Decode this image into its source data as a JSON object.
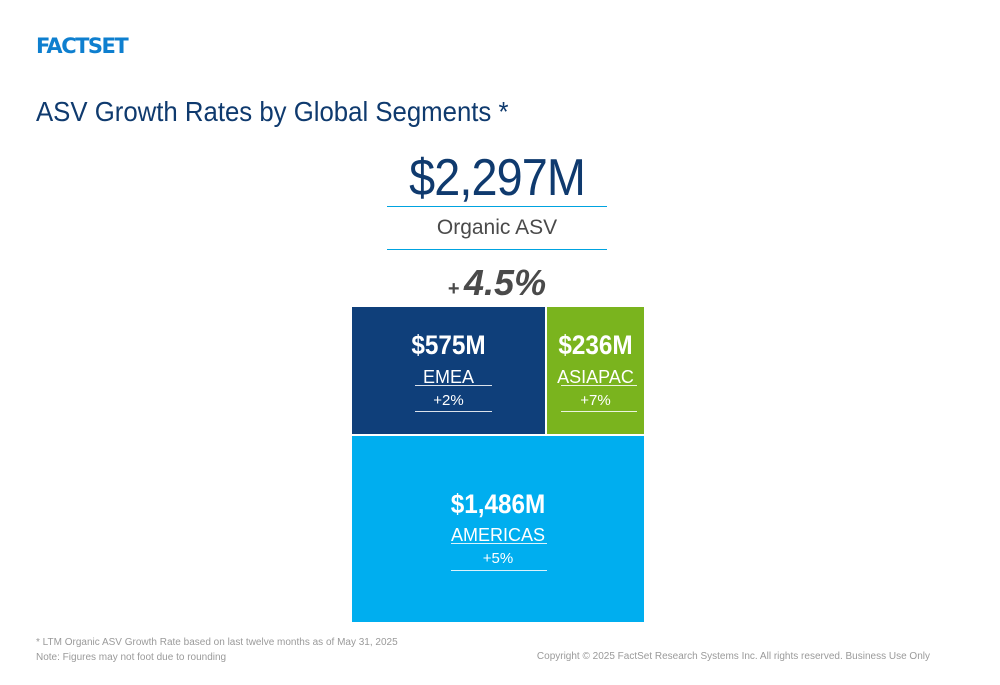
{
  "logo": {
    "text": "FACTSET"
  },
  "title": "ASV Growth Rates by Global Segments *",
  "total": {
    "value": "$2,297M",
    "label": "Organic ASV",
    "growth_sign": "+",
    "growth_value": "4.5%"
  },
  "segments": [
    {
      "name": "EMEA",
      "value": "$575M",
      "growth": "+2%",
      "color": "#0f3f7a"
    },
    {
      "name": "ASIAPAC",
      "value": "$236M",
      "growth": "+7%",
      "color": "#7ab41e"
    },
    {
      "name": "AMERICAS",
      "value": "$1,486M",
      "growth": "+5%",
      "color": "#00aeef"
    }
  ],
  "footnotes": {
    "line1": "*  LTM Organic ASV Growth Rate based on last twelve months as of May 31, 2025",
    "line2": "Note: Figures may not foot due to rounding"
  },
  "copyright": "Copyright © 2025 FactSet Research Systems Inc. All rights reserved. Business Use Only"
}
